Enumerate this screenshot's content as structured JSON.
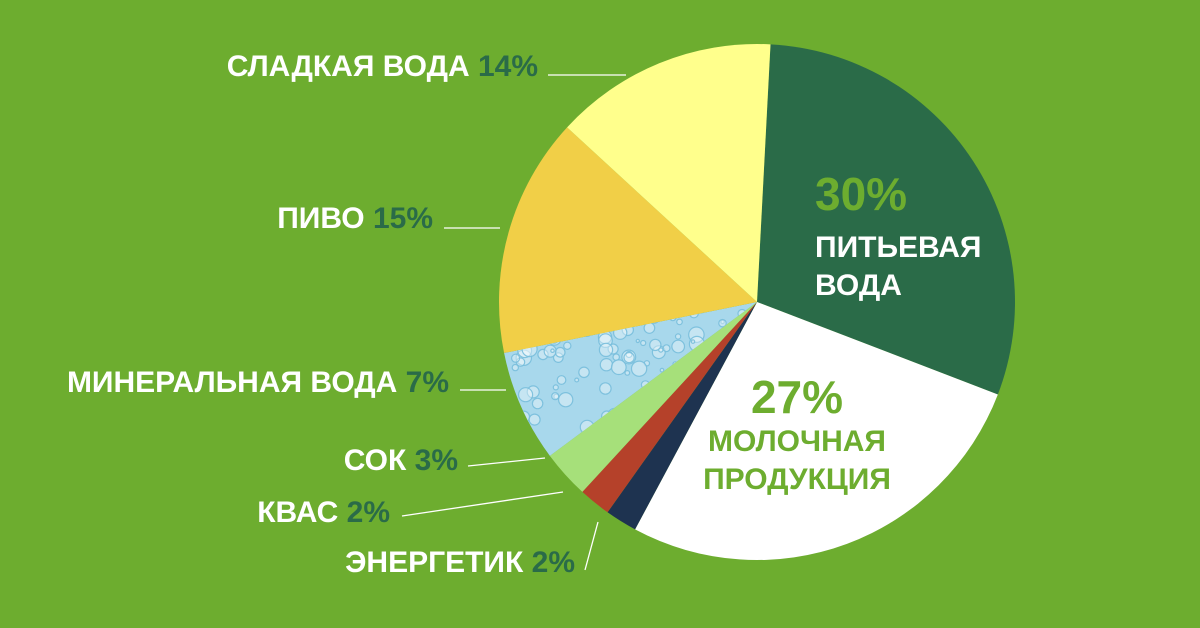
{
  "chart_data": {
    "type": "pie",
    "slices": [
      {
        "label": "ПИТЬЕВАЯ ВОДА",
        "lines": [
          "ПИТЬЕВАЯ",
          "ВОДА"
        ],
        "value": 30,
        "value_label": "30%",
        "color": "#2a6b48",
        "inside": true
      },
      {
        "label": "МОЛОЧНАЯ ПРОДУКЦИЯ",
        "lines": [
          "МОЛОЧНАЯ",
          "ПРОДУКЦИЯ"
        ],
        "value": 27,
        "value_label": "27%",
        "color": "#ffffff",
        "inside": true
      },
      {
        "label": "ЭНЕРГЕТИК",
        "value": 2,
        "value_label": "2%",
        "color": "#1e3350"
      },
      {
        "label": "КВАС",
        "value": 2,
        "value_label": "2%",
        "color": "#b5412a"
      },
      {
        "label": "СОК",
        "value": 3,
        "value_label": "3%",
        "color": "#a6e07a"
      },
      {
        "label": "МИНЕРАЛЬНАЯ ВОДА",
        "value": 7,
        "value_label": "7%",
        "color": "#a8d8ec",
        "texture": "bubbles"
      },
      {
        "label": "ПИВО",
        "value": 15,
        "value_label": "15%",
        "color": "#f1cf47"
      },
      {
        "label": "СЛАДКАЯ ВОДА",
        "value": 14,
        "value_label": "14%",
        "color": "#ffff8c"
      }
    ],
    "colors": {
      "background": "#6dad2f",
      "label_text": "#ffffff",
      "label_percent": "#2a6b48",
      "inside_percent": "#6dad2f",
      "inside_text_dark_slice": "#ffffff",
      "inside_text_light_slice": "#6dad2f"
    }
  }
}
